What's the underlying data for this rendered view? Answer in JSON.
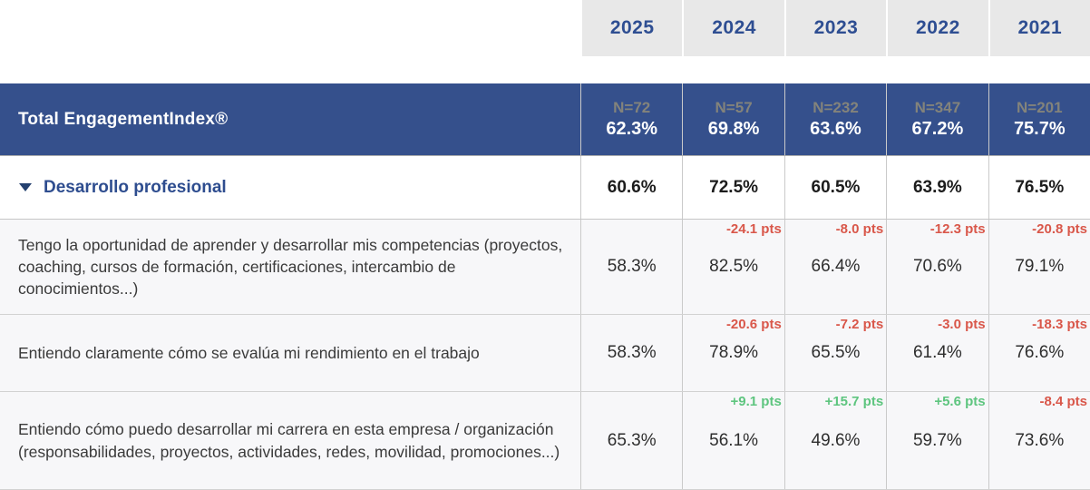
{
  "colors": {
    "header_blue_bg": "#35508C",
    "year_text_blue": "#2E4E92",
    "year_cell_bg": "#E8E8E8",
    "n_label_gray": "#83837B",
    "negative_red": "#D9574A",
    "positive_green": "#5EC57F",
    "question_row_bg": "#F7F7F9"
  },
  "years": [
    "2025",
    "2024",
    "2023",
    "2022",
    "2021"
  ],
  "total": {
    "label": "Total EngagementIndex®",
    "cells": [
      {
        "n": "N=72",
        "value": "62.3%"
      },
      {
        "n": "N=57",
        "value": "69.8%"
      },
      {
        "n": "N=232",
        "value": "63.6%"
      },
      {
        "n": "N=347",
        "value": "67.2%"
      },
      {
        "n": "N=201",
        "value": "75.7%"
      }
    ]
  },
  "category": {
    "label": "Desarrollo profesional",
    "values": [
      "60.6%",
      "72.5%",
      "60.5%",
      "63.9%",
      "76.5%"
    ]
  },
  "questions": [
    {
      "label": "Tengo la oportunidad de aprender y desarrollar mis competencias (proyectos, coaching, cursos de formación, certificaciones, intercambio de conocimientos...)",
      "cells": [
        {
          "value": "58.3%",
          "delta": ""
        },
        {
          "value": "82.5%",
          "delta": "-24.1 pts"
        },
        {
          "value": "66.4%",
          "delta": "-8.0 pts"
        },
        {
          "value": "70.6%",
          "delta": "-12.3 pts"
        },
        {
          "value": "79.1%",
          "delta": "-20.8 pts"
        }
      ]
    },
    {
      "label": "Entiendo claramente cómo se evalúa mi rendimiento en el trabajo",
      "cells": [
        {
          "value": "58.3%",
          "delta": ""
        },
        {
          "value": "78.9%",
          "delta": "-20.6 pts"
        },
        {
          "value": "65.5%",
          "delta": "-7.2 pts"
        },
        {
          "value": "61.4%",
          "delta": "-3.0 pts"
        },
        {
          "value": "76.6%",
          "delta": "-18.3 pts"
        }
      ]
    },
    {
      "label": "Entiendo cómo puedo desarrollar mi carrera en esta empresa / organización (responsabilidades, proyectos, actividades, redes, movilidad, promociones...)",
      "cells": [
        {
          "value": "65.3%",
          "delta": ""
        },
        {
          "value": "56.1%",
          "delta": "+9.1 pts"
        },
        {
          "value": "49.6%",
          "delta": "+15.7 pts"
        },
        {
          "value": "59.7%",
          "delta": "+5.6 pts"
        },
        {
          "value": "73.6%",
          "delta": "-8.4 pts"
        }
      ]
    }
  ]
}
